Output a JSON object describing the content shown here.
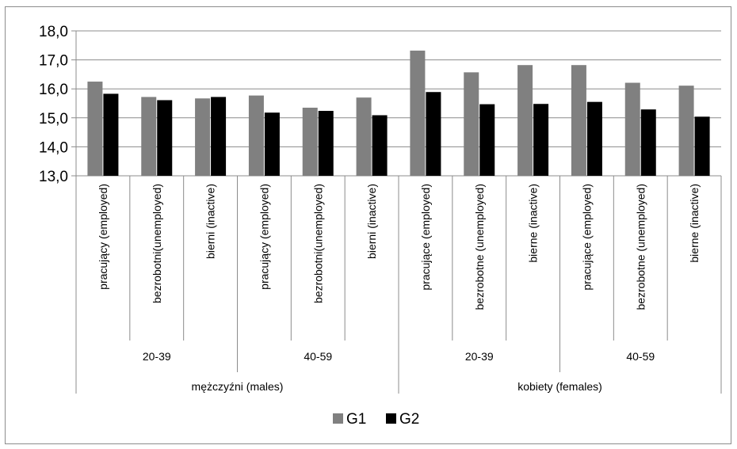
{
  "chart_data": {
    "type": "bar",
    "title": "",
    "xlabel": "",
    "ylabel": "",
    "ylim": [
      13.0,
      18.0
    ],
    "yticks": [
      "13,0",
      "14,0",
      "15,0",
      "16,0",
      "17,0",
      "18,0"
    ],
    "grid": true,
    "legend_position": "bottom",
    "categories": [
      "pracujący (employed)",
      "bezrobotni(unemployed)",
      "bierni (inactive)",
      "pracujący (employed)",
      "bezrobotni(unemployed)",
      "bierni (inactive)",
      "pracujące (employed)",
      "bezrobotne (unemployed)",
      "bierne (inactive)",
      "pracujące (employed)",
      "bezrobotne (unemployed)",
      "bierne (inactive)"
    ],
    "age_groups": [
      {
        "label": "20-39",
        "span": 3
      },
      {
        "label": "40-59",
        "span": 3
      },
      {
        "label": "20-39",
        "span": 3
      },
      {
        "label": "40-59",
        "span": 3
      }
    ],
    "sex_groups": [
      {
        "label": "mężczyźni (males)",
        "span": 6
      },
      {
        "label": "kobiety (females)",
        "span": 6
      }
    ],
    "series": [
      {
        "name": "G1",
        "color": "#808080",
        "values": [
          16.25,
          15.72,
          15.67,
          15.77,
          15.35,
          15.7,
          17.32,
          16.57,
          16.82,
          16.82,
          16.21,
          16.11
        ]
      },
      {
        "name": "G2",
        "color": "#000000",
        "values": [
          15.83,
          15.61,
          15.72,
          15.18,
          15.24,
          15.09,
          15.89,
          15.47,
          15.48,
          15.55,
          15.29,
          15.04
        ]
      }
    ]
  }
}
